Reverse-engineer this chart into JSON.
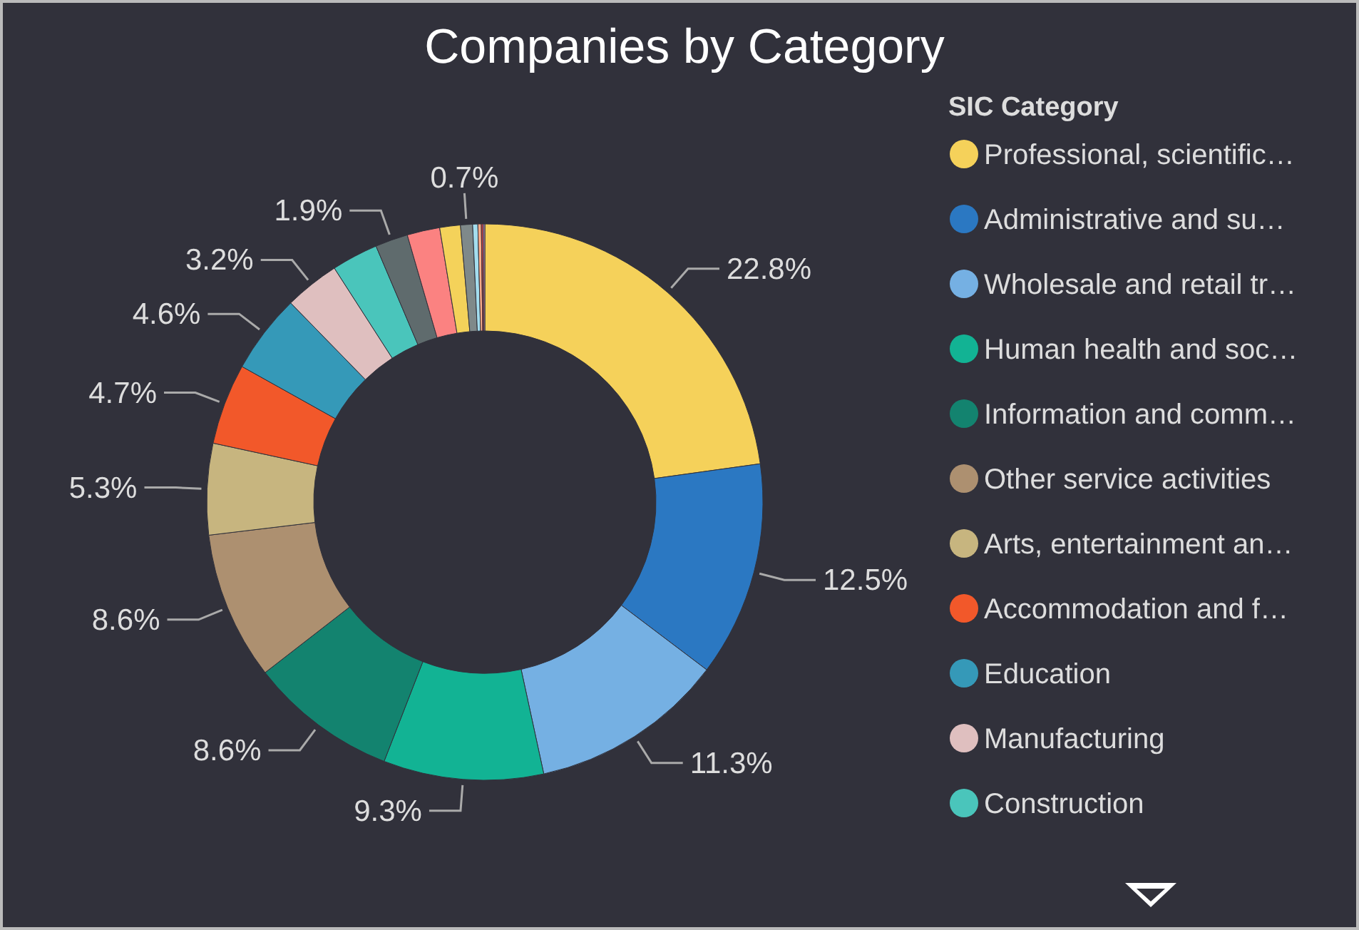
{
  "chart_data": {
    "type": "donut",
    "title": "Companies by Category",
    "legend_title": "SIC Category",
    "legend": "right",
    "categories": [
      "Professional, scientific…",
      "Administrative and su…",
      "Wholesale and retail tr…",
      "Human health and soc…",
      "Information and comm…",
      "Other service activities",
      "Arts, entertainment an…",
      "Accommodation and f…",
      "Education",
      "Manufacturing",
      "Construction",
      null,
      null,
      null,
      null,
      null,
      null,
      null,
      null
    ],
    "values": [
      22.8,
      12.5,
      11.3,
      9.3,
      8.6,
      8.6,
      5.3,
      4.7,
      4.6,
      3.2,
      2.7,
      1.9,
      1.9,
      1.2,
      0.7,
      0.3,
      0.2,
      0.1,
      0.1
    ],
    "value_labels": [
      "22.8%",
      "12.5%",
      "11.3%",
      "9.3%",
      "8.6%",
      "8.6%",
      "5.3%",
      "4.7%",
      "4.6%",
      "3.2%",
      null,
      "1.9%",
      null,
      null,
      "0.7%",
      null,
      null,
      null,
      null
    ],
    "colors": [
      "#f5d15a",
      "#2b78c2",
      "#75b0e3",
      "#12b394",
      "#13836f",
      "#ad9070",
      "#c7b57f",
      "#f2582a",
      "#3599b8",
      "#dfbfbf",
      "#4ac5bb",
      "#5f6b6d",
      "#fb8281",
      "#f4d25a",
      "#7f898a",
      "#a4ddee",
      "#fdab89",
      "#e0474c",
      "#b687ac"
    ]
  }
}
